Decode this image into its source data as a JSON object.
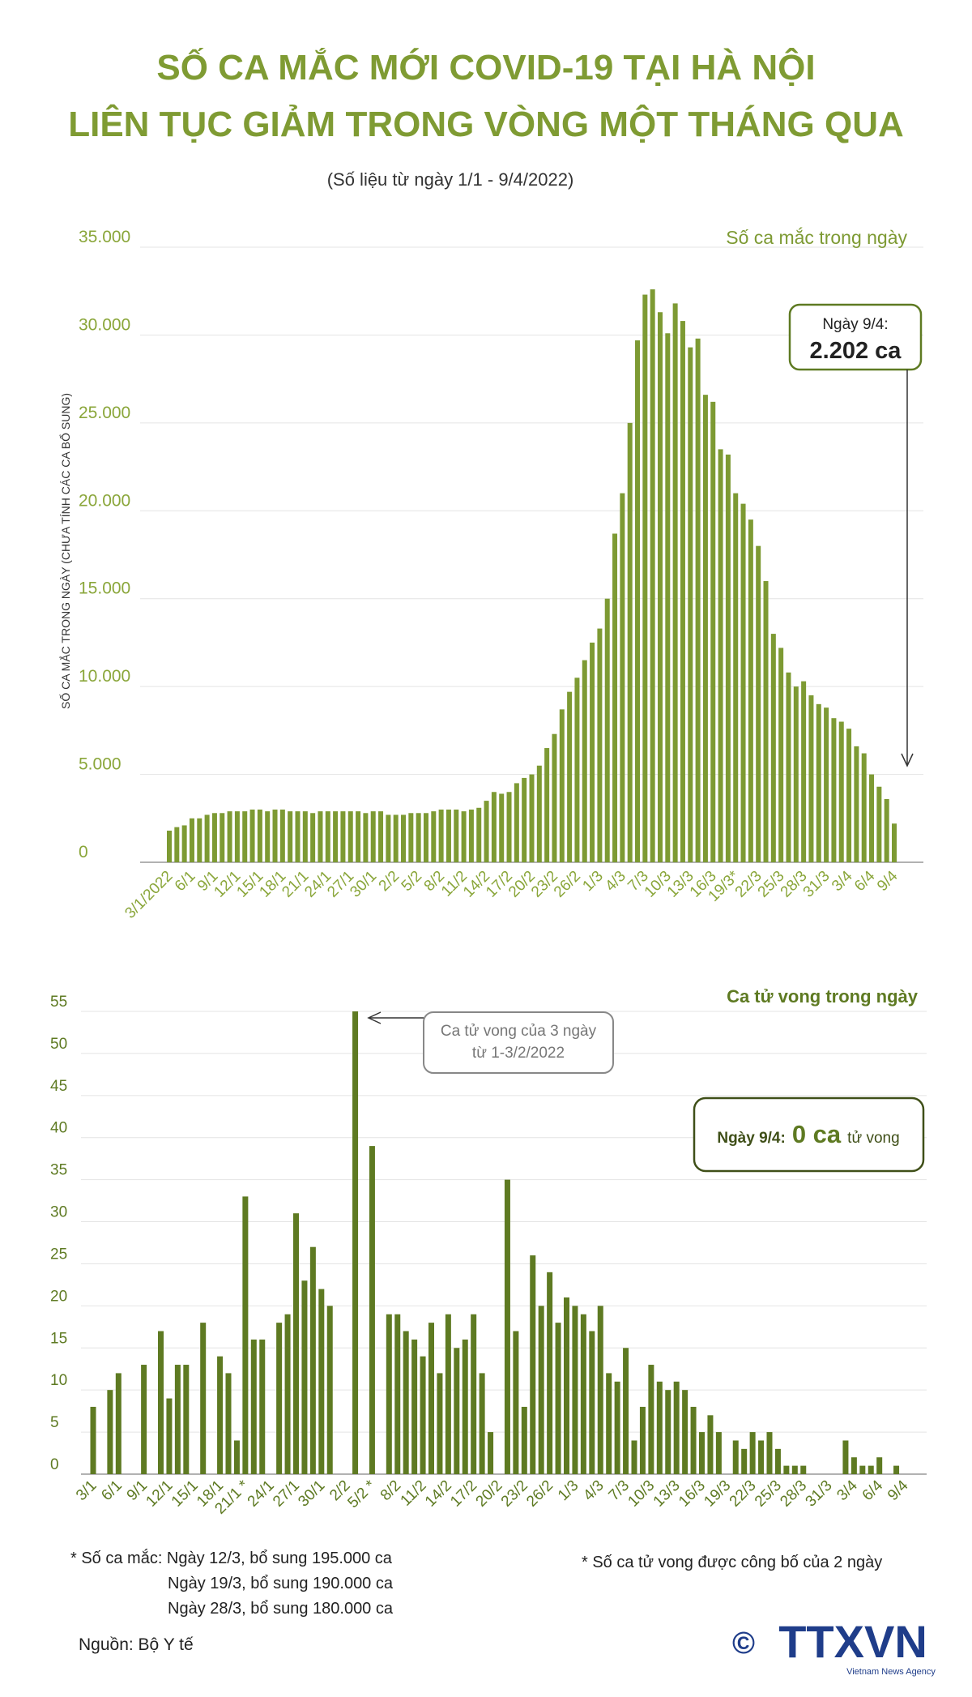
{
  "header": {
    "title": [
      "SỐ CA MẮC MỚI COVID-19 TẠI HÀ NỘI",
      "LIÊN TỤC GIẢM TRONG VÒNG MỘT THÁNG QUA"
    ],
    "subtitle": "(Số liệu từ ngày 1/1 - 9/4/2022)"
  },
  "chart_data": [
    {
      "type": "bar",
      "ylabel": "SỐ CA MẮC TRONG NGÀY (CHƯA TÍNH CÁC CA BỔ SUNG)",
      "categories": [
        "3/1/2022",
        null,
        null,
        "6/1",
        null,
        null,
        "9/1",
        null,
        null,
        "12/1",
        null,
        null,
        "15/1",
        null,
        null,
        "18/1",
        null,
        null,
        "21/1",
        null,
        null,
        "24/1",
        null,
        null,
        "27/1",
        null,
        null,
        "30/1",
        null,
        null,
        "2/2",
        null,
        null,
        "5/2",
        null,
        null,
        "8/2",
        null,
        null,
        "11/2",
        null,
        null,
        "14/2",
        null,
        null,
        "17/2",
        null,
        null,
        "20/2",
        null,
        null,
        "23/2",
        null,
        null,
        "26/2",
        null,
        null,
        "1/3",
        null,
        null,
        "4/3",
        null,
        null,
        "7/3",
        null,
        null,
        "10/3",
        null,
        null,
        "13/3",
        null,
        null,
        "16/3",
        null,
        null,
        "19/3*",
        null,
        null,
        "22/3",
        null,
        null,
        "25/3",
        null,
        null,
        "28/3",
        null,
        null,
        "31/3",
        null,
        null,
        "3/4",
        null,
        null,
        "6/4",
        null,
        null,
        "9/4"
      ],
      "series": [
        {
          "name": "Số ca mắc trong ngày",
          "color": "#7d9a33",
          "values": [
            1800,
            2000,
            2100,
            2500,
            2500,
            2700,
            2800,
            2800,
            2900,
            2900,
            2900,
            3000,
            3000,
            2900,
            3000,
            3000,
            2900,
            2900,
            2900,
            2800,
            2900,
            2900,
            2900,
            2900,
            2900,
            2900,
            2800,
            2900,
            2900,
            2700,
            2700,
            2700,
            2800,
            2800,
            2800,
            2900,
            3000,
            3000,
            3000,
            2900,
            3000,
            3100,
            3500,
            4000,
            3900,
            4000,
            4500,
            4800,
            5000,
            5500,
            6500,
            7300,
            8700,
            9700,
            10500,
            11500,
            12500,
            13300,
            15000,
            18700,
            21000,
            25000,
            29700,
            32300,
            32600,
            31300,
            30100,
            31800,
            30800,
            29300,
            29800,
            26600,
            26200,
            23500,
            23200,
            21000,
            20400,
            19500,
            18000,
            16000,
            13000,
            12200,
            10800,
            10000,
            10300,
            9500,
            9000,
            8800,
            8200,
            8000,
            7600,
            6600,
            6200,
            5000,
            4300,
            3600,
            2202
          ]
        }
      ],
      "ylim": [
        0,
        35000
      ],
      "yticks": [
        0,
        {
          "value": 5000,
          "label": "5.000"
        },
        {
          "value": 10000,
          "label": "10.000"
        },
        {
          "value": 15000,
          "label": "15.000"
        },
        {
          "value": 20000,
          "label": "20.000"
        },
        {
          "value": 25000,
          "label": "25.000"
        },
        {
          "value": 30000,
          "label": "30.000"
        },
        {
          "value": 35000,
          "label": "35.000"
        }
      ],
      "grid": true,
      "tick_color": "#8aa63a",
      "annotations": [
        "Ngày 9/4:",
        "2.202 ca"
      ]
    },
    {
      "type": "bar",
      "categories": [
        "3/1",
        null,
        null,
        "6/1",
        null,
        null,
        "9/1",
        null,
        null,
        "12/1",
        null,
        null,
        "15/1",
        null,
        null,
        "18/1",
        null,
        null,
        "21/1 *",
        null,
        null,
        "24/1",
        null,
        null,
        "27/1",
        null,
        null,
        "30/1",
        null,
        null,
        "2/2",
        null,
        null,
        "5/2 *",
        null,
        null,
        "8/2",
        null,
        null,
        "11/2",
        null,
        null,
        "14/2",
        null,
        null,
        "17/2",
        null,
        null,
        "20/2",
        null,
        null,
        "23/2",
        null,
        null,
        "26/2",
        null,
        null,
        "1/3",
        null,
        null,
        "4/3",
        null,
        null,
        "7/3",
        null,
        null,
        "10/3",
        null,
        null,
        "13/3",
        null,
        null,
        "16/3",
        null,
        null,
        "19/3",
        null,
        null,
        "22/3",
        null,
        null,
        "25/3",
        null,
        null,
        "28/3",
        null,
        null,
        "31/3",
        null,
        null,
        "3/4",
        null,
        null,
        "6/4",
        null,
        null,
        "9/4"
      ],
      "series": [
        {
          "name": "Ca tử vong trong ngày",
          "color": "#5e7a22",
          "values": [
            8,
            0,
            10,
            12,
            0,
            0,
            13,
            0,
            17,
            9,
            13,
            13,
            0,
            18,
            0,
            14,
            12,
            4,
            33,
            16,
            16,
            0,
            18,
            19,
            31,
            23,
            27,
            22,
            20,
            0,
            0,
            55,
            0,
            39,
            0,
            19,
            19,
            17,
            16,
            14,
            18,
            12,
            19,
            15,
            16,
            19,
            12,
            5,
            0,
            35,
            17,
            8,
            26,
            20,
            24,
            18,
            21,
            20,
            19,
            17,
            20,
            12,
            11,
            15,
            4,
            8,
            13,
            11,
            10,
            11,
            10,
            8,
            5,
            7,
            5,
            0,
            4,
            3,
            5,
            4,
            5,
            3,
            1,
            1,
            1,
            0,
            0,
            0,
            0,
            4,
            2,
            1,
            1,
            2,
            0,
            1,
            0
          ]
        }
      ],
      "ylim": [
        0,
        55
      ],
      "yticks": [
        0,
        5,
        10,
        15,
        20,
        25,
        30,
        35,
        40,
        45,
        50,
        55
      ],
      "grid": true,
      "tick_color": "#5e7a22",
      "annotations": [
        "Ca tử vong của 3 ngày",
        "từ 1-3/2/2022",
        "Ngày 9/4:",
        "0 ca",
        "tử vong"
      ]
    }
  ],
  "footer": {
    "notes_cases": [
      "* Số ca mắc: Ngày 12/3, bổ sung 195.000 ca",
      "Ngày 19/3, bổ sung 190.000 ca",
      "Ngày 28/3, bổ sung 180.000 ca"
    ],
    "note_deaths": "* Số ca tử vong được công bố của 2 ngày",
    "source": "Nguồn: Bộ Y tế",
    "logo": "TTXVN",
    "logo_sub": "Vietnam News Agency",
    "copyright": "©"
  }
}
